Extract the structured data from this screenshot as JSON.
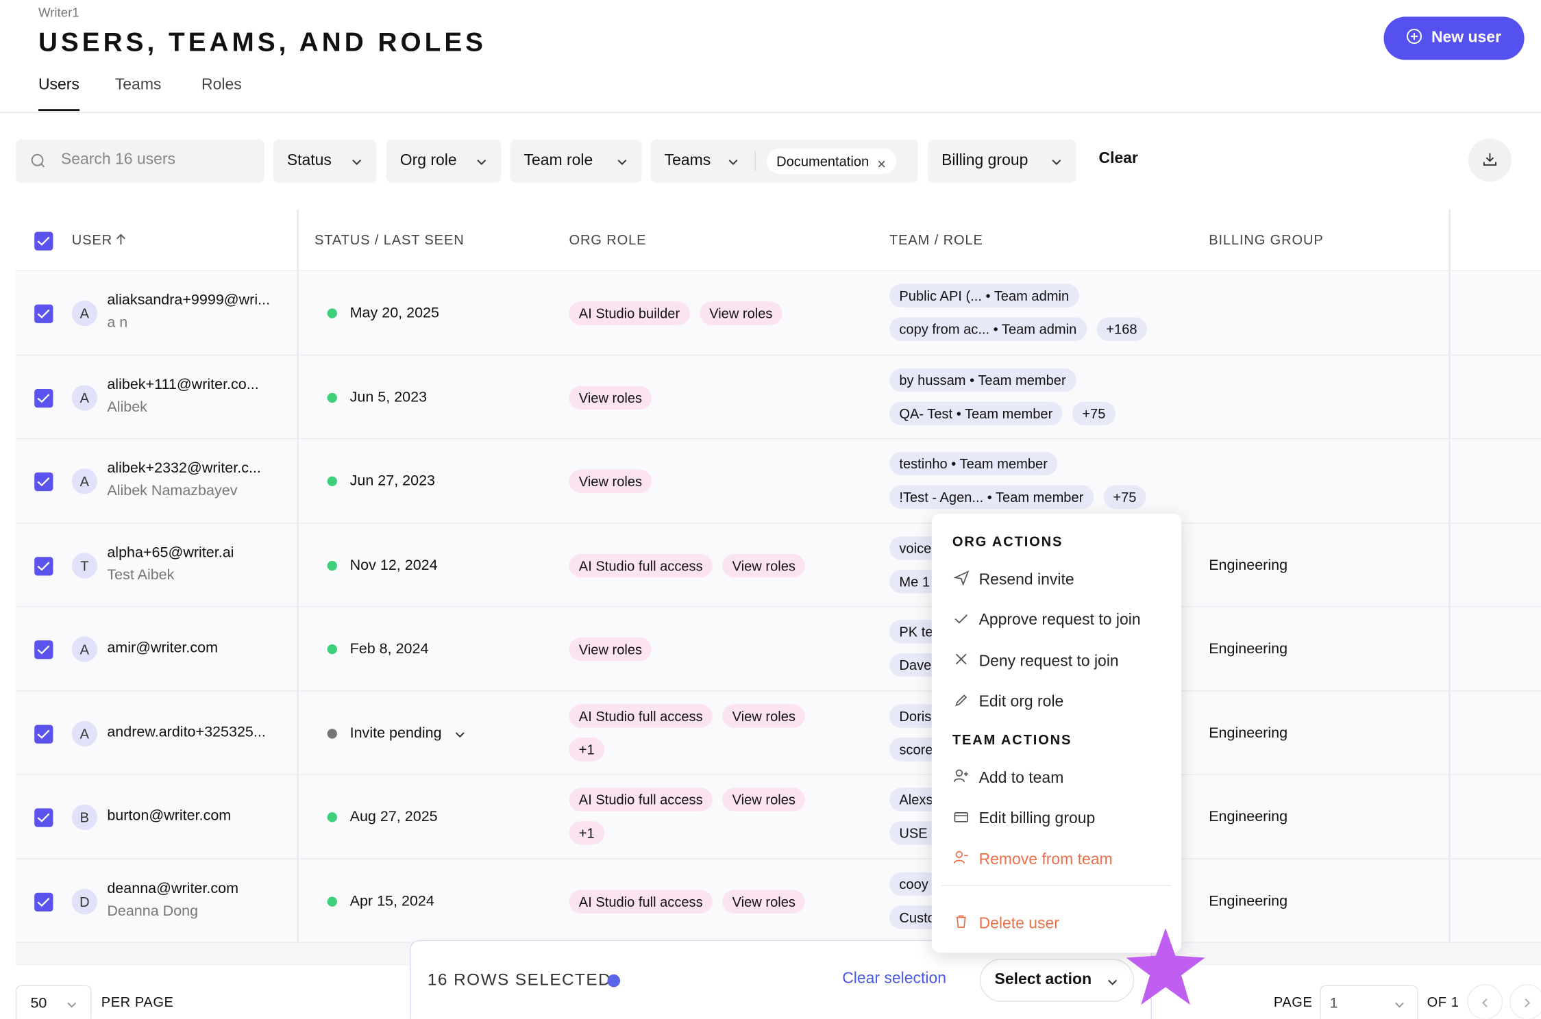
{
  "header": {
    "app": "Writer1",
    "title": "USERS, TEAMS, AND ROLES",
    "new_user": "New user"
  },
  "tabs": [
    "Users",
    "Teams",
    "Roles"
  ],
  "filters": {
    "search": "Search 16 users",
    "status": "Status",
    "org_role": "Org role",
    "team_role": "Team role",
    "teams": "Teams",
    "teams_chip": "Documentation",
    "billing_group": "Billing group",
    "clear": "Clear"
  },
  "table": {
    "headers": [
      "USER",
      "STATUS / LAST SEEN",
      "ORG ROLE",
      "TEAM / ROLE",
      "BILLING GROUP"
    ],
    "rows": [
      {
        "avatar": "A",
        "email": "aliaksandra+9999@wri...",
        "name": "a n",
        "status": "May 20, 2025",
        "dot_color": "#3ecf7a",
        "org_roles": [
          "AI Studio builder",
          "View roles"
        ],
        "teams": [
          "Public API (... • Team admin",
          "copy from ac... • Team admin"
        ],
        "more": "+168"
      },
      {
        "avatar": "A",
        "email": "alibek+111@writer.co...",
        "name": "Alibek",
        "status": "Jun 5, 2023",
        "dot_color": "#3ecf7a",
        "org_roles": [
          "View roles"
        ],
        "teams": [
          "by hussam • Team member",
          "QA- Test • Team member"
        ],
        "more": "+75"
      },
      {
        "avatar": "A",
        "email": "alibek+2332@writer.c...",
        "name": "Alibek Namazbayev",
        "status": "Jun 27, 2023",
        "dot_color": "#3ecf7a",
        "org_roles": [
          "View roles"
        ],
        "teams": [
          "testinho • Team member",
          "!Test - Agen... • Team member"
        ],
        "more": "+75"
      },
      {
        "avatar": "T",
        "email": "alpha+65@writer.ai",
        "name": "Test Aibek",
        "status": "Nov 12, 2024",
        "dot_color": "#3ecf7a",
        "org_roles": [
          "AI Studio full access",
          "View roles"
        ],
        "teams": [
          "voice",
          "Me 1"
        ],
        "billing": "Engineering"
      },
      {
        "avatar": "A",
        "email": "amir@writer.com",
        "status": "Feb 8, 2024",
        "dot_color": "#3ecf7a",
        "org_roles": [
          "View roles"
        ],
        "teams": [
          "PK te",
          "Dave"
        ],
        "billing": "Engineering"
      },
      {
        "avatar": "A",
        "email": "andrew.ardito+325325...",
        "status": "Invite pending",
        "dot_color": "#777777",
        "dropdown": true,
        "org_roles": [
          "AI Studio full access",
          "View roles",
          "+1"
        ],
        "teams": [
          "Doris",
          "score"
        ],
        "billing": "Engineering"
      },
      {
        "avatar": "B",
        "email": "burton@writer.com",
        "status": "Aug 27, 2025",
        "dot_color": "#3ecf7a",
        "org_roles": [
          "AI Studio full access",
          "View roles",
          "+1"
        ],
        "teams": [
          "Alexs",
          "USE C"
        ],
        "billing": "Engineering"
      },
      {
        "avatar": "D",
        "email": "deanna@writer.com",
        "name": "Deanna Dong",
        "status": "Apr 15, 2024",
        "dot_color": "#3ecf7a",
        "org_roles": [
          "AI Studio full access",
          "View roles"
        ],
        "teams": [
          "cooy",
          "Custo"
        ],
        "billing": "Engineering"
      }
    ]
  },
  "menu": {
    "org_title": "ORG ACTIONS",
    "org_items": [
      "Resend invite",
      "Approve request to join",
      "Deny request to join",
      "Edit org role"
    ],
    "team_title": "TEAM ACTIONS",
    "team_items": [
      "Add to team",
      "Edit billing group",
      "Remove from team"
    ],
    "delete": "Delete user"
  },
  "footer": {
    "per_page_value": "50",
    "per_page": "PER PAGE",
    "selected": "16 ROWS SELECTED",
    "clear_selection": "Clear selection",
    "select_action": "Select action",
    "page": "PAGE",
    "page_value": "1",
    "of": "OF 1"
  }
}
